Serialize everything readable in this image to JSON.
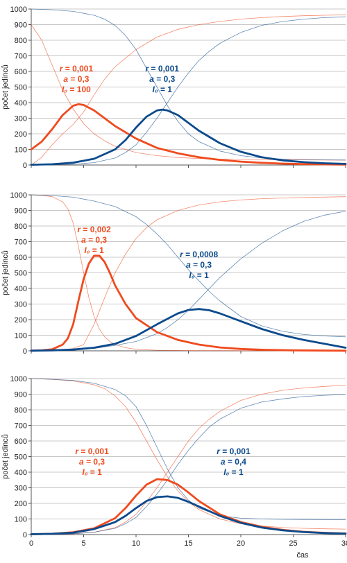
{
  "colors": {
    "orange": "#f04a1e",
    "blue": "#0c4a8c",
    "grid": "#c8c8c8",
    "axis": "#555555"
  },
  "x_axis_label": "čas",
  "chart_data": [
    {
      "type": "line",
      "xlabel": "",
      "ylabel": "počet jedinců",
      "xlim": [
        0,
        30
      ],
      "ylim": [
        0,
        1000
      ],
      "yticks": [
        0,
        100,
        200,
        300,
        400,
        500,
        600,
        700,
        800,
        900,
        1000
      ],
      "xticks": [],
      "grid": true,
      "annotations": [
        {
          "color": "#f04a1e",
          "lines": [
            [
              "r",
              " = 0,001"
            ],
            [
              "a",
              " = 0,3"
            ],
            [
              "I₀",
              " = 100"
            ]
          ],
          "at": [
            4.3,
            600
          ]
        },
        {
          "color": "#0c4a8c",
          "lines": [
            [
              "r",
              " = 0,001"
            ],
            [
              "a",
              " = 0,3"
            ],
            [
              "I₀",
              " = 1"
            ]
          ],
          "at": [
            12.5,
            600
          ]
        }
      ],
      "series": [
        {
          "color": "#f04a1e",
          "width": 2.8,
          "x": [
            0,
            1,
            2,
            3,
            4,
            4.5,
            5,
            6,
            7,
            8,
            10,
            12,
            14,
            16,
            18,
            20,
            22,
            24,
            26,
            28,
            30
          ],
          "y": [
            100,
            150,
            230,
            320,
            380,
            390,
            385,
            350,
            300,
            250,
            170,
            110,
            75,
            50,
            33,
            22,
            14,
            9,
            6,
            4,
            3
          ]
        },
        {
          "color": "#f04a1e",
          "width": 0.8,
          "x": [
            0,
            1,
            2,
            3,
            4,
            5,
            6,
            7,
            8,
            10,
            12,
            14,
            16,
            18,
            20,
            22,
            24,
            26,
            28,
            30
          ],
          "y": [
            900,
            800,
            640,
            480,
            360,
            265,
            200,
            155,
            120,
            80,
            60,
            48,
            42,
            38,
            36,
            35,
            34,
            33,
            32,
            31
          ]
        },
        {
          "color": "#f04a1e",
          "width": 0.8,
          "x": [
            0,
            1,
            2,
            3,
            4,
            5,
            6,
            7,
            8,
            10,
            12,
            14,
            16,
            18,
            20,
            22,
            24,
            26,
            28,
            30
          ],
          "y": [
            0,
            50,
            130,
            200,
            260,
            340,
            450,
            550,
            630,
            740,
            820,
            870,
            900,
            920,
            935,
            945,
            952,
            957,
            960,
            963
          ]
        },
        {
          "color": "#0c4a8c",
          "width": 2.8,
          "x": [
            0,
            2,
            4,
            6,
            8,
            9,
            10,
            11,
            12,
            12.5,
            13,
            14,
            15,
            16,
            18,
            20,
            22,
            24,
            26,
            28,
            30
          ],
          "y": [
            2,
            5,
            15,
            40,
            100,
            160,
            240,
            310,
            350,
            355,
            350,
            320,
            270,
            220,
            140,
            85,
            50,
            30,
            18,
            11,
            7
          ]
        },
        {
          "color": "#0c4a8c",
          "width": 0.8,
          "x": [
            0,
            2,
            4,
            6,
            7,
            8,
            9,
            10,
            11,
            12,
            13,
            14,
            15,
            16,
            18,
            20,
            22,
            24,
            26,
            28,
            30
          ],
          "y": [
            1000,
            995,
            985,
            960,
            935,
            895,
            830,
            740,
            620,
            500,
            380,
            280,
            200,
            150,
            90,
            60,
            45,
            38,
            35,
            33,
            32
          ]
        },
        {
          "color": "#0c4a8c",
          "width": 0.8,
          "x": [
            0,
            4,
            6,
            8,
            9,
            10,
            11,
            12,
            13,
            14,
            15,
            16,
            17,
            18,
            20,
            22,
            24,
            26,
            28,
            30
          ],
          "y": [
            0,
            5,
            15,
            45,
            80,
            130,
            210,
            300,
            400,
            500,
            590,
            670,
            730,
            780,
            850,
            895,
            920,
            935,
            945,
            950
          ]
        }
      ]
    },
    {
      "type": "line",
      "xlabel": "",
      "ylabel": "počet jedinců",
      "xlim": [
        0,
        30
      ],
      "ylim": [
        0,
        1000
      ],
      "yticks": [
        0,
        100,
        200,
        300,
        400,
        500,
        600,
        700,
        800,
        900,
        1000
      ],
      "xticks": [],
      "grid": true,
      "annotations": [
        {
          "color": "#f04a1e",
          "lines": [
            [
              "r",
              " = 0,002"
            ],
            [
              "a",
              " = 0,3"
            ],
            [
              "I₀",
              " = 1"
            ]
          ],
          "at": [
            6.0,
            760
          ]
        },
        {
          "color": "#0c4a8c",
          "lines": [
            [
              "r",
              " = 0,0008"
            ],
            [
              "a",
              " = 0,3"
            ],
            [
              "I₀",
              " = 1"
            ]
          ],
          "at": [
            16.0,
            600
          ]
        }
      ],
      "series": [
        {
          "color": "#f04a1e",
          "width": 2.8,
          "x": [
            0,
            1,
            2,
            3,
            3.5,
            4,
            4.5,
            5,
            5.5,
            6,
            6.5,
            7,
            7.5,
            8,
            9,
            10,
            12,
            14,
            16,
            18,
            20,
            22,
            25,
            30
          ],
          "y": [
            1,
            3,
            10,
            40,
            80,
            170,
            320,
            460,
            560,
            610,
            610,
            570,
            500,
            420,
            300,
            210,
            120,
            70,
            40,
            22,
            12,
            7,
            3,
            1
          ]
        },
        {
          "color": "#f04a1e",
          "width": 0.8,
          "x": [
            0,
            1,
            2,
            3,
            3.5,
            4,
            4.5,
            5,
            5.5,
            6,
            6.5,
            7,
            7.5,
            8,
            9,
            10,
            12,
            15,
            20,
            30
          ],
          "y": [
            1000,
            997,
            988,
            955,
            910,
            820,
            670,
            500,
            340,
            220,
            140,
            90,
            60,
            40,
            20,
            10,
            4,
            2,
            1,
            0
          ]
        },
        {
          "color": "#f04a1e",
          "width": 0.8,
          "x": [
            0,
            3,
            4,
            5,
            6,
            7,
            8,
            9,
            10,
            11,
            12,
            14,
            16,
            18,
            20,
            22,
            25,
            30
          ],
          "y": [
            0,
            5,
            15,
            40,
            170,
            340,
            500,
            620,
            720,
            790,
            840,
            900,
            935,
            955,
            967,
            975,
            982,
            988
          ]
        },
        {
          "color": "#0c4a8c",
          "width": 2.8,
          "x": [
            0,
            2,
            4,
            6,
            8,
            10,
            12,
            14,
            15,
            16,
            17,
            18,
            20,
            22,
            24,
            26,
            28,
            30
          ],
          "y": [
            1,
            3,
            8,
            20,
            45,
            95,
            170,
            240,
            262,
            268,
            260,
            240,
            190,
            140,
            100,
            70,
            45,
            20
          ]
        },
        {
          "color": "#0c4a8c",
          "width": 0.8,
          "x": [
            0,
            2,
            4,
            6,
            8,
            10,
            11,
            12,
            13,
            14,
            15,
            16,
            17,
            18,
            20,
            22,
            24,
            26,
            28,
            30
          ],
          "y": [
            1000,
            995,
            985,
            960,
            925,
            860,
            810,
            750,
            680,
            600,
            520,
            450,
            380,
            320,
            220,
            160,
            125,
            105,
            95,
            90
          ]
        },
        {
          "color": "#0c4a8c",
          "width": 0.8,
          "x": [
            0,
            4,
            6,
            8,
            10,
            12,
            13,
            14,
            15,
            16,
            17,
            18,
            20,
            22,
            24,
            26,
            28,
            30
          ],
          "y": [
            0,
            5,
            15,
            35,
            60,
            110,
            150,
            200,
            260,
            330,
            400,
            470,
            590,
            690,
            770,
            830,
            870,
            895
          ]
        }
      ]
    },
    {
      "type": "line",
      "xlabel": "čas",
      "ylabel": "počet jedinců",
      "xlim": [
        0,
        30
      ],
      "ylim": [
        0,
        1000
      ],
      "yticks": [
        0,
        100,
        200,
        300,
        400,
        500,
        600,
        700,
        800,
        900,
        1000
      ],
      "xticks": [
        0,
        5,
        10,
        15,
        20,
        25,
        30
      ],
      "grid": true,
      "annotations": [
        {
          "color": "#f04a1e",
          "lines": [
            [
              "r",
              " = 0,001"
            ],
            [
              "a",
              " = 0,3"
            ],
            [
              "I₀",
              " = 1"
            ]
          ],
          "at": [
            5.8,
            515
          ]
        },
        {
          "color": "#0c4a8c",
          "lines": [
            [
              "r",
              " = 0,001"
            ],
            [
              "a",
              " = 0,4"
            ],
            [
              "I₀",
              " = 1"
            ]
          ],
          "at": [
            19.3,
            515
          ]
        }
      ],
      "series": [
        {
          "color": "#f04a1e",
          "width": 2.8,
          "x": [
            0,
            2,
            4,
            6,
            8,
            9,
            10,
            11,
            12,
            13,
            14,
            15,
            16,
            18,
            20,
            22,
            24,
            26,
            28,
            30
          ],
          "y": [
            2,
            5,
            15,
            40,
            105,
            170,
            250,
            320,
            355,
            350,
            320,
            270,
            215,
            130,
            80,
            50,
            30,
            18,
            11,
            7
          ]
        },
        {
          "color": "#f04a1e",
          "width": 0.8,
          "x": [
            0,
            2,
            4,
            6,
            7,
            8,
            9,
            10,
            11,
            12,
            13,
            14,
            15,
            16,
            18,
            20,
            22,
            24,
            26,
            28,
            30
          ],
          "y": [
            1000,
            995,
            985,
            960,
            935,
            890,
            820,
            720,
            600,
            480,
            370,
            280,
            210,
            160,
            100,
            70,
            55,
            45,
            40,
            37,
            35
          ]
        },
        {
          "color": "#f04a1e",
          "width": 0.8,
          "x": [
            0,
            4,
            6,
            8,
            9,
            10,
            11,
            12,
            13,
            14,
            15,
            16,
            17,
            18,
            20,
            22,
            24,
            26,
            28,
            30
          ],
          "y": [
            0,
            5,
            15,
            45,
            80,
            130,
            210,
            300,
            400,
            500,
            600,
            680,
            740,
            790,
            860,
            900,
            925,
            940,
            950,
            958
          ]
        },
        {
          "color": "#0c4a8c",
          "width": 2.8,
          "x": [
            0,
            2,
            4,
            6,
            8,
            9,
            10,
            11,
            12,
            13,
            14,
            15,
            16,
            18,
            20,
            22,
            24,
            26,
            28,
            30
          ],
          "y": [
            2,
            5,
            12,
            35,
            80,
            120,
            170,
            215,
            240,
            245,
            235,
            210,
            180,
            120,
            75,
            45,
            27,
            16,
            10,
            6
          ]
        },
        {
          "color": "#0c4a8c",
          "width": 0.8,
          "x": [
            0,
            2,
            4,
            6,
            8,
            9,
            10,
            11,
            12,
            13,
            14,
            15,
            16,
            18,
            20,
            22,
            24,
            26,
            28,
            30
          ],
          "y": [
            1000,
            995,
            988,
            970,
            930,
            890,
            820,
            700,
            560,
            420,
            300,
            220,
            170,
            120,
            105,
            100,
            98,
            97,
            96,
            96
          ]
        },
        {
          "color": "#0c4a8c",
          "width": 0.8,
          "x": [
            0,
            4,
            6,
            8,
            9,
            10,
            11,
            12,
            13,
            14,
            15,
            16,
            17,
            18,
            20,
            22,
            24,
            26,
            28,
            30
          ],
          "y": [
            0,
            5,
            15,
            40,
            70,
            110,
            180,
            260,
            350,
            450,
            540,
            620,
            690,
            740,
            810,
            850,
            870,
            885,
            893,
            898
          ]
        }
      ]
    }
  ]
}
